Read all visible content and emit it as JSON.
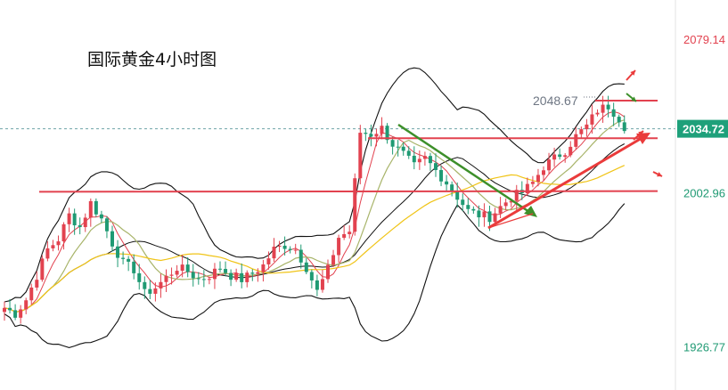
{
  "title": "国际黄金4小时图",
  "chart_data": {
    "type": "candlestick",
    "title": "国际黄金4小时图",
    "timeframe": "4H",
    "y_axis_labels": [
      {
        "value": 2079.14,
        "text": "2079.14",
        "color": "#e2424f"
      },
      {
        "value": 2002.96,
        "text": "2002.96",
        "color": "#1f9a73"
      },
      {
        "value": 1926.77,
        "text": "1926.77",
        "color": "#1f9a73"
      }
    ],
    "current_price": {
      "value": 2034.72,
      "text": "2034.72",
      "color": "#1ea07a"
    },
    "recent_high": {
      "value": 2048.67,
      "text": "2048.67"
    },
    "ylim": [
      1911,
      2095
    ],
    "horizontal_levels": [
      2048.67,
      2030.0,
      2003.5,
      2003.8
    ],
    "colors": {
      "up": "#e2424f",
      "down": "#1f9a73",
      "grid": "#6fa2a8",
      "bb": "#111111",
      "ma_short": "#e2424f",
      "ma_mid": "#a8b46a",
      "ma_long": "#f0c417",
      "trend_down": "#3d8f2a",
      "trend_up": "#ea3b3b",
      "level": "#e2424f"
    }
  }
}
